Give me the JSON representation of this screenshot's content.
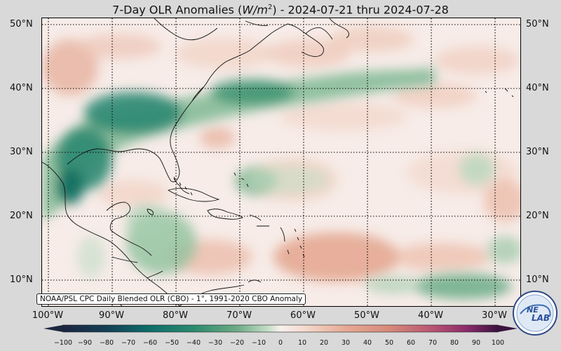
{
  "title": {
    "prefix": "7-Day OLR Anomalies (",
    "unit_var": "W/m",
    "unit_exp": "2",
    "suffix": ") - 2024-07-21 thru 2024-07-28"
  },
  "lat_labels": [
    "50°N",
    "40°N",
    "30°N",
    "20°N",
    "10°N"
  ],
  "lon_labels": [
    "100°W",
    "90°W",
    "80°W",
    "70°W",
    "60°W",
    "50°W",
    "40°W",
    "30°W"
  ],
  "credit": "NOAA/PSL CPC Daily Blended OLR (CBO) - 1°, 1991-2020 CBO Anomaly",
  "colorbar": {
    "ticks": [
      "−100",
      "−90",
      "−80",
      "−70",
      "−60",
      "−50",
      "−40",
      "−30",
      "−20",
      "−10",
      "0",
      "10",
      "20",
      "30",
      "40",
      "50",
      "60",
      "70",
      "80",
      "90",
      "100"
    ],
    "min": -100,
    "max": 100
  },
  "logo": {
    "line1": "NE",
    "line2": "LAB"
  },
  "colors": {
    "negative_strong": "#0f6e5f",
    "negative_mid": "#4f9c77",
    "negative_light": "#b8d8c0",
    "neutral": "#f8f1ee",
    "positive_light": "#f0c9b8",
    "positive_mid": "#e2a48c",
    "positive_strong": "#a8416a"
  }
}
